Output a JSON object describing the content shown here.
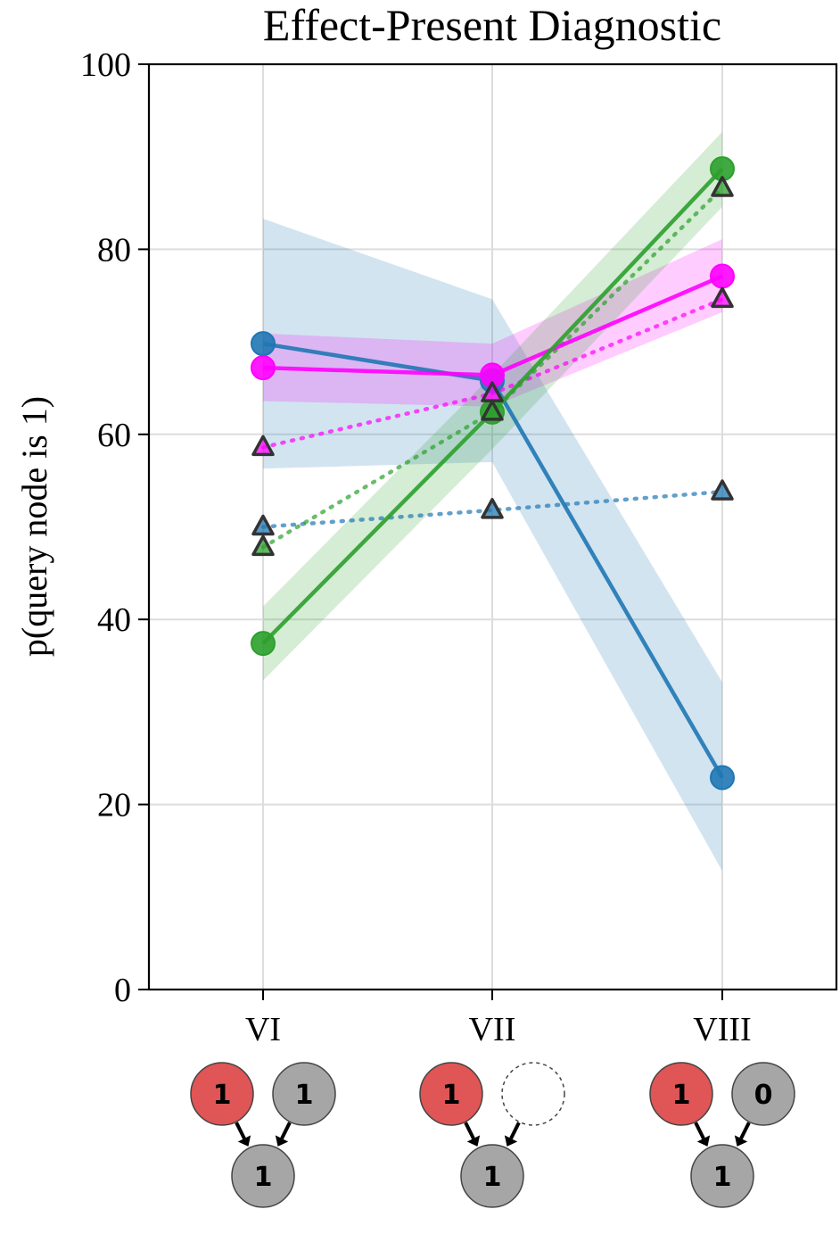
{
  "chart_data": {
    "type": "line",
    "title": "Effect-Present Diagnostic",
    "xlabel": "",
    "ylabel": "p(query node is 1)",
    "categories": [
      "VI",
      "VII",
      "VIII"
    ],
    "ylim": [
      0,
      100
    ],
    "yticks": [
      0,
      20,
      40,
      60,
      80,
      100
    ],
    "ytick_labels": [
      "0",
      "20",
      "40",
      "60",
      "80",
      "100"
    ],
    "grid": true,
    "series": [
      {
        "name": "blue-human",
        "kind": "human",
        "color": "#1f77b4",
        "values": [
          69.8,
          65.8,
          22.9
        ],
        "band_low": [
          56.3,
          57.0,
          12.8
        ],
        "band_high": [
          83.3,
          74.6,
          33.2
        ]
      },
      {
        "name": "magenta-human",
        "kind": "human",
        "color": "#ff00ff",
        "values": [
          67.2,
          66.4,
          77.1
        ],
        "band_low": [
          63.6,
          63.0,
          73.2
        ],
        "band_high": [
          70.9,
          69.8,
          81.1
        ]
      },
      {
        "name": "green-human",
        "kind": "human",
        "color": "#2ca02c",
        "values": [
          37.4,
          62.4,
          88.7
        ],
        "band_low": [
          33.4,
          58.4,
          84.6
        ],
        "band_high": [
          41.4,
          66.4,
          92.7
        ]
      },
      {
        "name": "blue-model",
        "kind": "model",
        "color": "#1f77b4",
        "values": [
          50.0,
          51.8,
          53.8
        ]
      },
      {
        "name": "magenta-model",
        "kind": "model",
        "color": "#ff00ff",
        "values": [
          58.6,
          64.4,
          74.6
        ]
      },
      {
        "name": "green-model",
        "kind": "model",
        "color": "#2ca02c",
        "values": [
          47.8,
          62.4,
          86.6
        ]
      }
    ],
    "network_diagrams": [
      {
        "category": "VI",
        "cause": "1",
        "other": "1",
        "effect": "1",
        "other_observed": true
      },
      {
        "category": "VII",
        "cause": "1",
        "other": "",
        "effect": "1",
        "other_observed": false
      },
      {
        "category": "VIII",
        "cause": "1",
        "other": "0",
        "effect": "1",
        "other_observed": true
      }
    ],
    "colors": {
      "cause_node": "#e05555",
      "observed_node": "#a6a6a6",
      "grid": "#dddddd"
    }
  }
}
